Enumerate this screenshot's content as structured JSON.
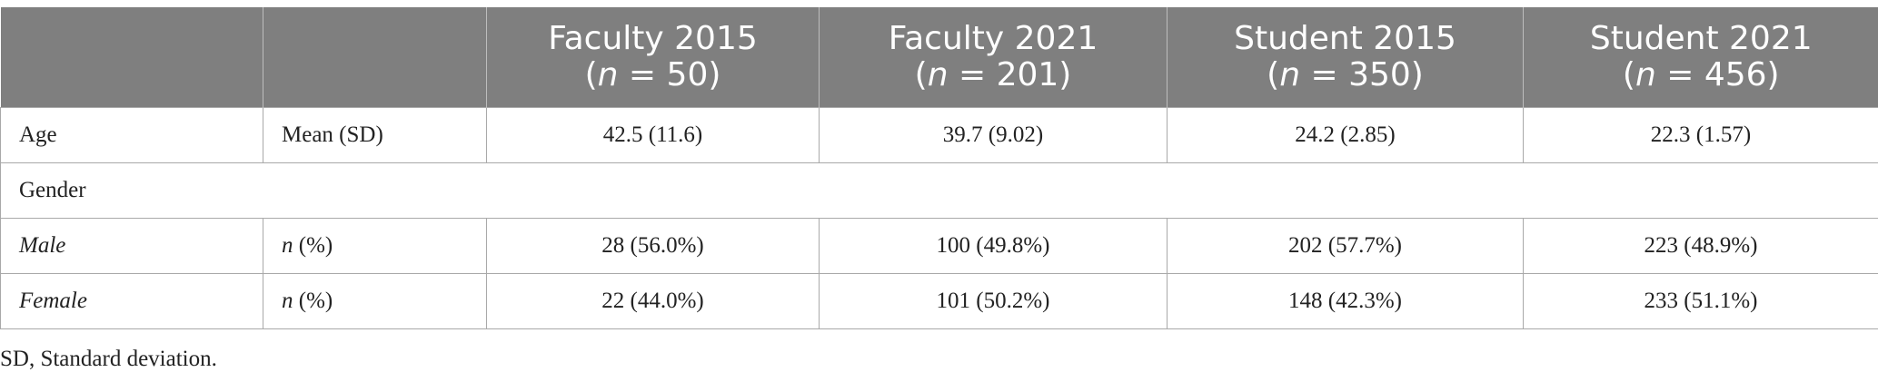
{
  "table": {
    "headers": [
      {
        "title": "",
        "n_label": "",
        "n_value": ""
      },
      {
        "title": "",
        "n_label": "",
        "n_value": ""
      },
      {
        "title": "Faculty 2015",
        "n_label": "n",
        "n_value": " = 50"
      },
      {
        "title": "Faculty 2021",
        "n_label": "n",
        "n_value": " = 201"
      },
      {
        "title": "Student 2015",
        "n_label": "n",
        "n_value": " = 350"
      },
      {
        "title": "Student 2021",
        "n_label": "n",
        "n_value": " = 456"
      }
    ],
    "rows": {
      "age": {
        "label": "Age",
        "stat": "Mean (SD)",
        "values": [
          "42.5 (11.6)",
          "39.7 (9.02)",
          "24.2 (2.85)",
          "22.3 (1.57)"
        ]
      },
      "gender": {
        "label": "Gender"
      },
      "male": {
        "label": "Male",
        "stat_n": "n",
        "stat_rest": " (%)",
        "values": [
          "28 (56.0%)",
          "100 (49.8%)",
          "202 (57.7%)",
          "223 (48.9%)"
        ]
      },
      "female": {
        "label": "Female",
        "stat_n": "n",
        "stat_rest": " (%)",
        "values": [
          "22 (44.0%)",
          "101 (50.2%)",
          "148 (42.3%)",
          "233 (51.1%)"
        ]
      }
    }
  },
  "footnote": "SD, Standard deviation."
}
